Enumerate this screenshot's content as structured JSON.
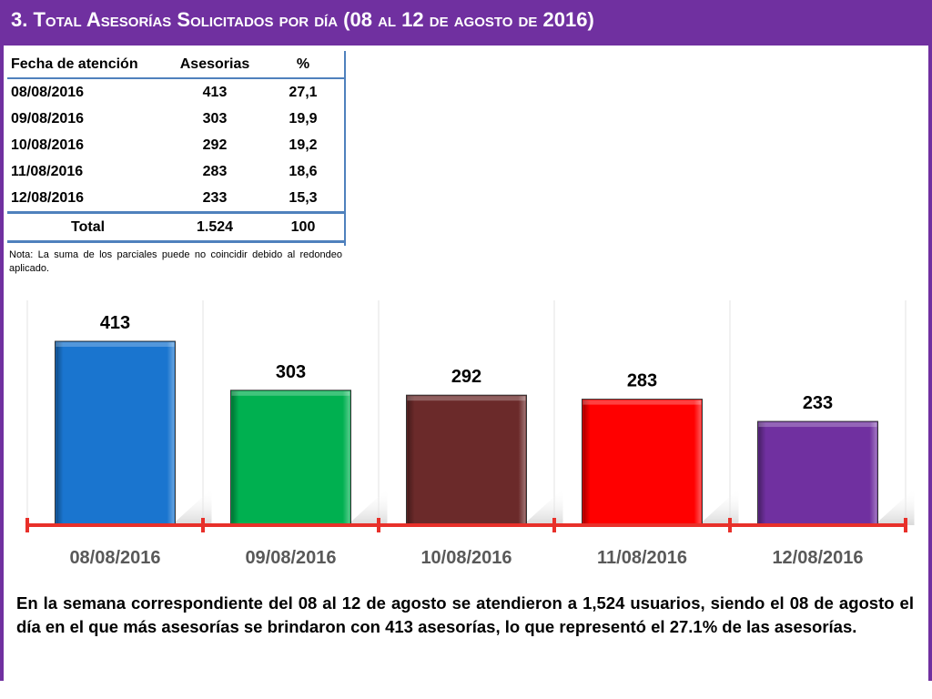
{
  "slide": {
    "title": "3.  Total Asesorías Solicitados por día  (08 al 12 de agosto de 2016)",
    "colors": {
      "brand_purple": "#7030a0",
      "table_rule": "#4f81bd",
      "axis_red": "#e8302a"
    }
  },
  "table": {
    "headers": [
      "Fecha de atención",
      "Asesorias",
      "%"
    ],
    "rows": [
      [
        "08/08/2016",
        "413",
        "27,1"
      ],
      [
        "09/08/2016",
        "303",
        "19,9"
      ],
      [
        "10/08/2016",
        "292",
        "19,2"
      ],
      [
        "11/08/2016",
        "283",
        "18,6"
      ],
      [
        "12/08/2016",
        "233",
        "15,3"
      ]
    ],
    "total": [
      "Total",
      "1.524",
      "100"
    ],
    "note": "Nota: La suma de los parciales puede no coincidir debido al redondeo aplicado."
  },
  "chart_data": {
    "type": "bar",
    "title": "",
    "xlabel": "",
    "ylabel": "",
    "categories": [
      "08/08/2016",
      "09/08/2016",
      "10/08/2016",
      "11/08/2016",
      "12/08/2016"
    ],
    "values": [
      413,
      303,
      292,
      283,
      233
    ],
    "data_labels": [
      "413",
      "303",
      "292",
      "283",
      "233"
    ],
    "colors": [
      "#1a75cf",
      "#00b050",
      "#6b2a2a",
      "#ff0000",
      "#7030a0"
    ],
    "ylim": [
      0,
      413
    ],
    "grid": false,
    "legend": "none"
  },
  "summary": {
    "text": "En la semana correspondiente del 08 al 12 de agosto se  atendieron a 1,524 usuarios, siendo el  08 de agosto el día en el que más asesorías se brindaron con 413 asesorías, lo que representó el 27.1% de las asesorías."
  }
}
